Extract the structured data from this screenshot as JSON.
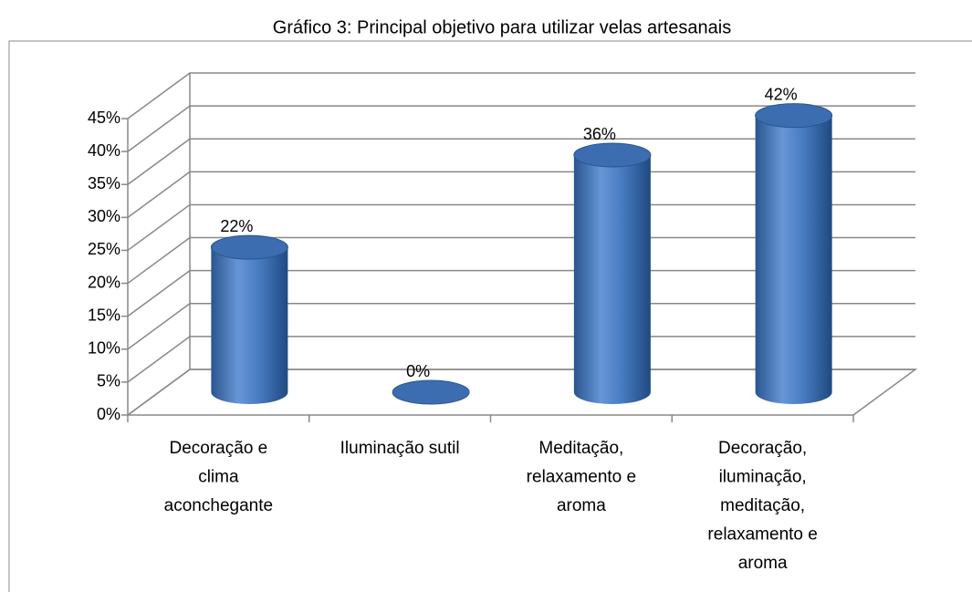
{
  "chart_data": {
    "type": "bar3d",
    "title": "Gráfico 3: Principal objetivo para utilizar velas artesanais",
    "categories": [
      [
        "Decoração e",
        "clima",
        "aconchegante"
      ],
      [
        "Iluminação sutil"
      ],
      [
        "Meditação,",
        "relaxamento e",
        "aroma"
      ],
      [
        "Decoração,",
        "iluminação,",
        "meditação,",
        "relaxamento e",
        "aroma"
      ]
    ],
    "values": [
      22,
      0,
      36,
      42
    ],
    "value_labels": [
      "22%",
      "0%",
      "36%",
      "42%"
    ],
    "color": "#4a7ec4",
    "ylim": [
      0,
      45
    ],
    "yticks": [
      {
        "value": 0,
        "label": "0%"
      },
      {
        "value": 5,
        "label": "5%"
      },
      {
        "value": 10,
        "label": "10%"
      },
      {
        "value": 15,
        "label": "15%"
      },
      {
        "value": 20,
        "label": "20%"
      },
      {
        "value": 25,
        "label": "25%"
      },
      {
        "value": 30,
        "label": "30%"
      },
      {
        "value": 35,
        "label": "35%"
      },
      {
        "value": 40,
        "label": "40%"
      },
      {
        "value": 45,
        "label": "45%"
      }
    ],
    "grid": true
  }
}
